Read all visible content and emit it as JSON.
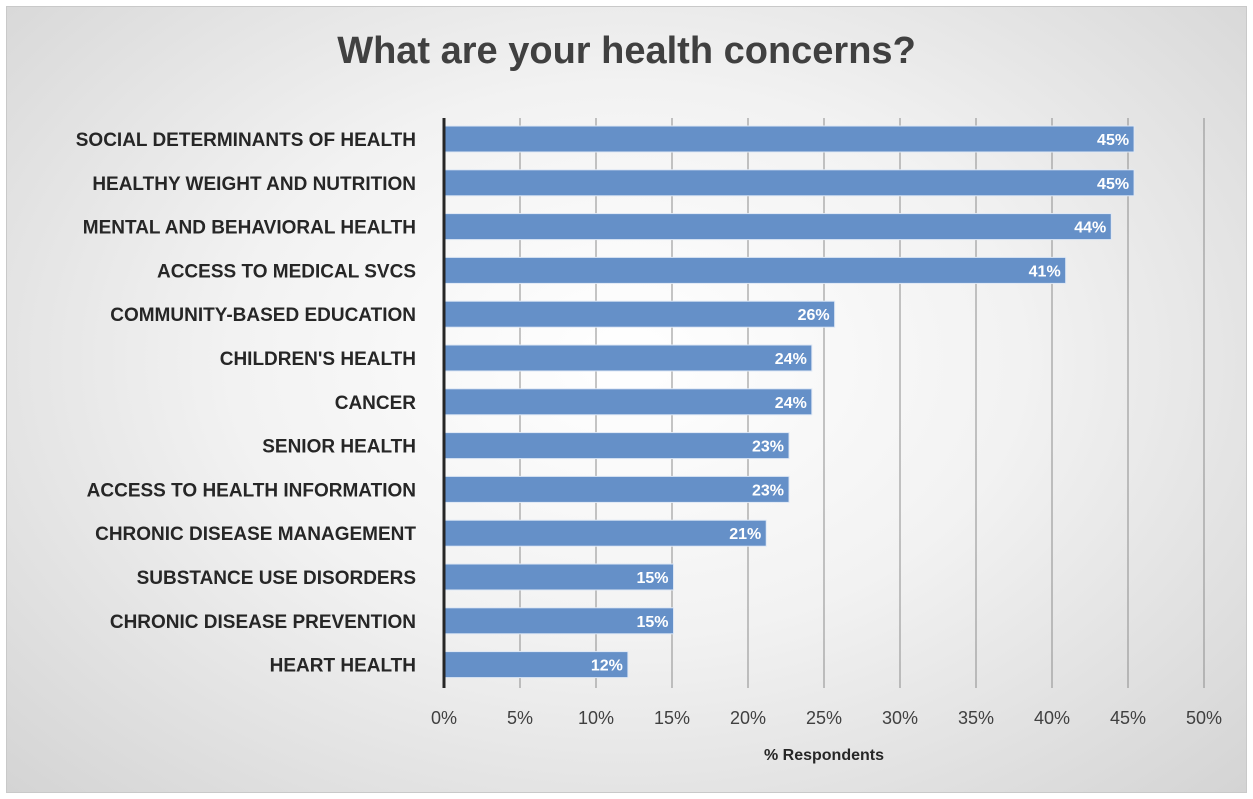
{
  "chart_data": {
    "type": "bar",
    "orientation": "horizontal",
    "title": "What are your health concerns?",
    "xlabel": "% Respondents",
    "ylabel": "",
    "categories": [
      "SOCIAL DETERMINANTS OF HEALTH",
      "HEALTHY WEIGHT AND NUTRITION",
      "MENTAL AND BEHAVIORAL HEALTH",
      "ACCESS TO MEDICAL SVCS",
      "COMMUNITY-BASED EDUCATION",
      "CHILDREN'S HEALTH",
      "CANCER",
      "SENIOR HEALTH",
      "ACCESS TO HEALTH INFORMATION",
      "CHRONIC DISEASE MANAGEMENT",
      "SUBSTANCE USE DISORDERS",
      "CHRONIC DISEASE PREVENTION",
      "HEART HEALTH"
    ],
    "values": [
      45.4,
      45.4,
      43.9,
      40.9,
      25.7,
      24.2,
      24.2,
      22.7,
      22.7,
      21.2,
      15.1,
      15.1,
      12.1
    ],
    "data_labels": [
      "45%",
      "45%",
      "44%",
      "41%",
      "26%",
      "24%",
      "24%",
      "23%",
      "23%",
      "21%",
      "15%",
      "15%",
      "12%"
    ],
    "xlim": [
      0,
      50
    ],
    "xticks": [
      0,
      5,
      10,
      15,
      20,
      25,
      30,
      35,
      40,
      45,
      50
    ],
    "xtick_labels": [
      "0%",
      "5%",
      "10%",
      "15%",
      "20%",
      "25%",
      "30%",
      "35%",
      "40%",
      "45%",
      "50%"
    ],
    "grid": true,
    "legend": "none",
    "bar_color": "#6590c8"
  }
}
